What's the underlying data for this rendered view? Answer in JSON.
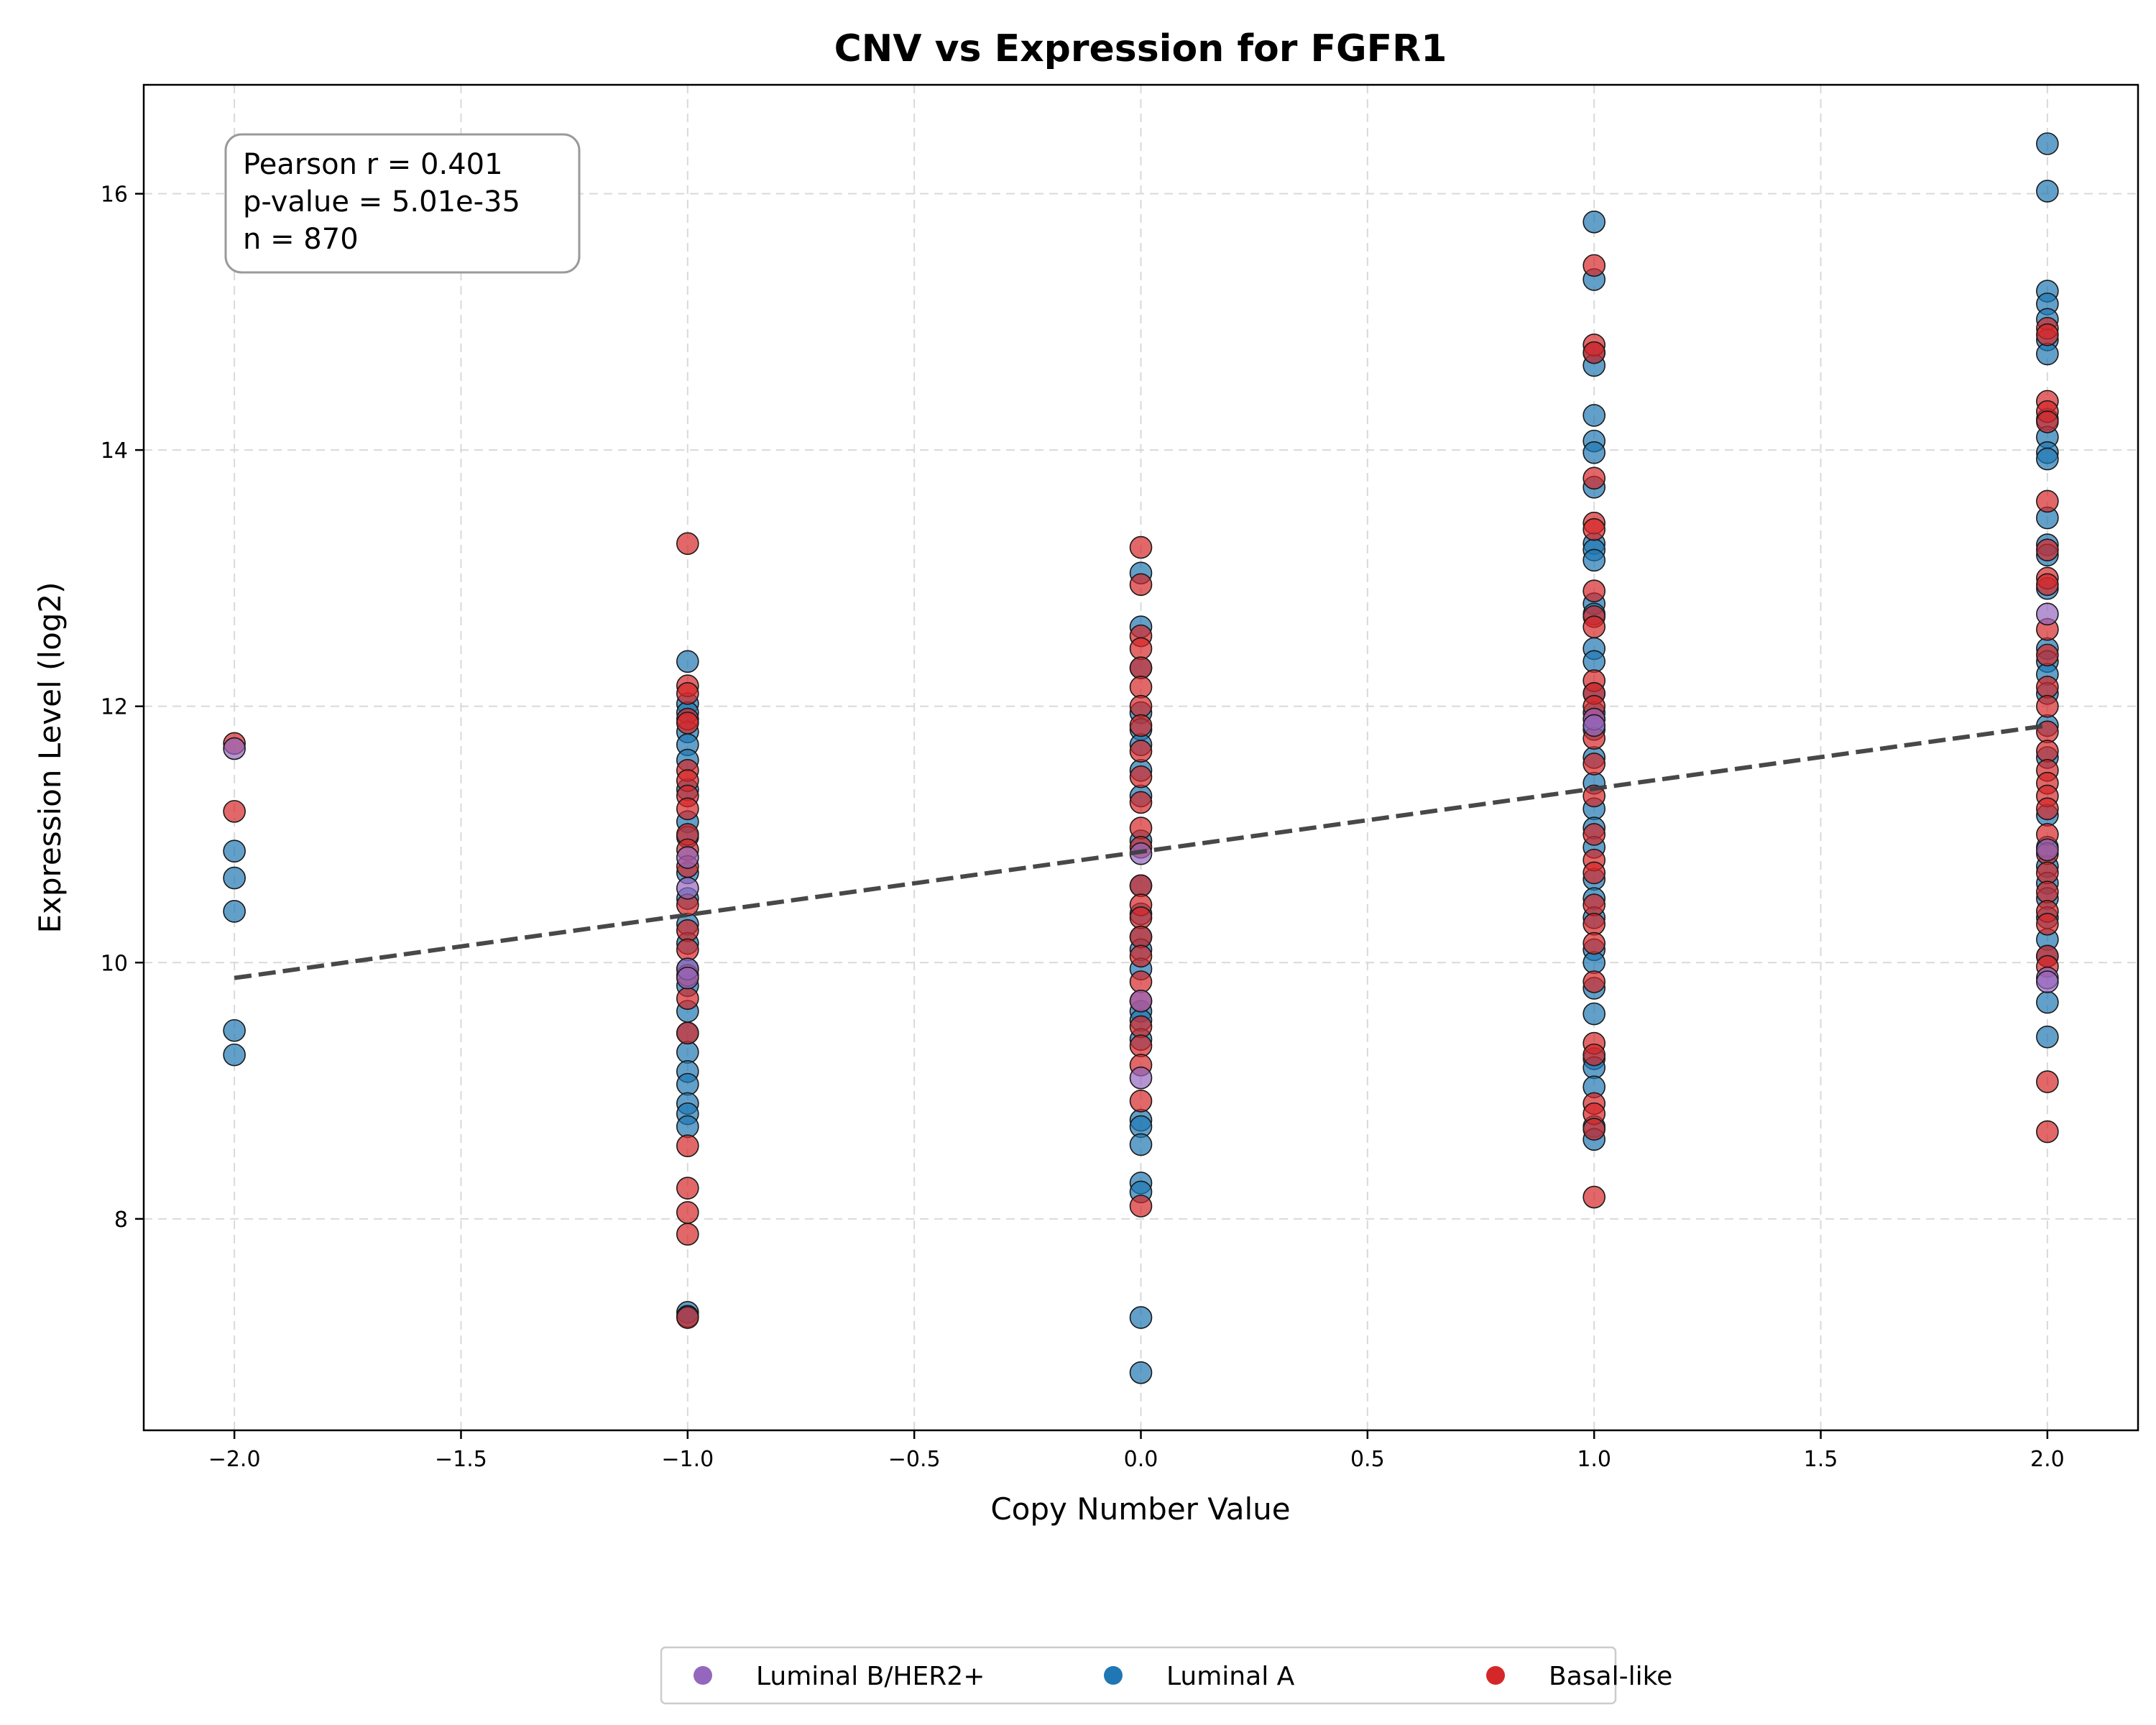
{
  "chart_data": {
    "type": "scatter",
    "title": "CNV vs Expression for FGFR1",
    "xlabel": "Copy Number Value",
    "ylabel": "Expression Level (log2)",
    "xlim": [
      -2.2,
      2.2
    ],
    "ylim": [
      6.35,
      16.85
    ],
    "x_ticks": [
      -2.0,
      -1.5,
      -1.0,
      -0.5,
      0.0,
      0.5,
      1.0,
      1.5,
      2.0
    ],
    "x_tick_labels": [
      "−2.0",
      "−1.5",
      "−1.0",
      "−0.5",
      "0.0",
      "0.5",
      "1.0",
      "1.5",
      "2.0"
    ],
    "y_ticks": [
      8,
      10,
      12,
      14,
      16
    ],
    "y_tick_labels": [
      "8",
      "10",
      "12",
      "14",
      "16"
    ],
    "grid": true,
    "annotation_lines": [
      "Pearson r = 0.401",
      "p-value = 5.01e-35",
      "n = 870"
    ],
    "regression_line": {
      "x": [
        -2.0,
        2.0
      ],
      "y": [
        9.88,
        11.85
      ],
      "style": "dashed",
      "color": "#3f3f3f"
    },
    "legend_position": "bottom-center",
    "series": [
      {
        "name": "Luminal A",
        "color": "#1f77b4",
        "points": [
          [
            -2,
            10.87
          ],
          [
            -2,
            10.66
          ],
          [
            -2,
            10.4
          ],
          [
            -2,
            9.47
          ],
          [
            -2,
            9.28
          ],
          [
            -1,
            12.35
          ],
          [
            -1,
            12.02
          ],
          [
            -1,
            11.95
          ],
          [
            -1,
            11.8
          ],
          [
            -1,
            11.7
          ],
          [
            -1,
            11.58
          ],
          [
            -1,
            11.35
          ],
          [
            -1,
            11.1
          ],
          [
            -1,
            10.98
          ],
          [
            -1,
            10.7
          ],
          [
            -1,
            10.5
          ],
          [
            -1,
            10.3
          ],
          [
            -1,
            10.15
          ],
          [
            -1,
            9.95
          ],
          [
            -1,
            9.82
          ],
          [
            -1,
            9.62
          ],
          [
            -1,
            9.45
          ],
          [
            -1,
            9.3
          ],
          [
            -1,
            9.15
          ],
          [
            -1,
            9.05
          ],
          [
            -1,
            8.9
          ],
          [
            -1,
            8.82
          ],
          [
            -1,
            8.72
          ],
          [
            -1,
            7.27
          ],
          [
            -1,
            7.24
          ],
          [
            0,
            13.04
          ],
          [
            0,
            12.62
          ],
          [
            0,
            12.3
          ],
          [
            0,
            11.95
          ],
          [
            0,
            11.82
          ],
          [
            0,
            11.7
          ],
          [
            0,
            11.5
          ],
          [
            0,
            11.3
          ],
          [
            0,
            10.95
          ],
          [
            0,
            10.6
          ],
          [
            0,
            10.38
          ],
          [
            0,
            10.2
          ],
          [
            0,
            10.1
          ],
          [
            0,
            9.95
          ],
          [
            0,
            9.62
          ],
          [
            0,
            9.55
          ],
          [
            0,
            9.4
          ],
          [
            0,
            8.77
          ],
          [
            0,
            8.72
          ],
          [
            0,
            8.58
          ],
          [
            0,
            8.28
          ],
          [
            0,
            8.21
          ],
          [
            0,
            7.23
          ],
          [
            0,
            6.8
          ],
          [
            1,
            15.78
          ],
          [
            1,
            15.33
          ],
          [
            1,
            14.76
          ],
          [
            1,
            14.66
          ],
          [
            1,
            14.27
          ],
          [
            1,
            14.07
          ],
          [
            1,
            13.98
          ],
          [
            1,
            13.71
          ],
          [
            1,
            13.27
          ],
          [
            1,
            13.22
          ],
          [
            1,
            13.14
          ],
          [
            1,
            12.8
          ],
          [
            1,
            12.72
          ],
          [
            1,
            12.45
          ],
          [
            1,
            12.35
          ],
          [
            1,
            12.1
          ],
          [
            1,
            11.95
          ],
          [
            1,
            11.82
          ],
          [
            1,
            11.6
          ],
          [
            1,
            11.4
          ],
          [
            1,
            11.2
          ],
          [
            1,
            11.05
          ],
          [
            1,
            10.9
          ],
          [
            1,
            10.65
          ],
          [
            1,
            10.5
          ],
          [
            1,
            10.35
          ],
          [
            1,
            10.1
          ],
          [
            1,
            10.0
          ],
          [
            1,
            9.8
          ],
          [
            1,
            9.6
          ],
          [
            1,
            9.25
          ],
          [
            1,
            9.18
          ],
          [
            1,
            9.03
          ],
          [
            1,
            8.72
          ],
          [
            1,
            8.62
          ],
          [
            2,
            16.39
          ],
          [
            2,
            16.02
          ],
          [
            2,
            15.24
          ],
          [
            2,
            15.14
          ],
          [
            2,
            15.02
          ],
          [
            2,
            14.86
          ],
          [
            2,
            14.75
          ],
          [
            2,
            14.24
          ],
          [
            2,
            14.1
          ],
          [
            2,
            13.98
          ],
          [
            2,
            13.93
          ],
          [
            2,
            13.47
          ],
          [
            2,
            13.26
          ],
          [
            2,
            13.18
          ],
          [
            2,
            12.92
          ],
          [
            2,
            12.45
          ],
          [
            2,
            12.35
          ],
          [
            2,
            12.25
          ],
          [
            2,
            12.1
          ],
          [
            2,
            11.85
          ],
          [
            2,
            11.6
          ],
          [
            2,
            11.15
          ],
          [
            2,
            10.9
          ],
          [
            2,
            10.75
          ],
          [
            2,
            10.62
          ],
          [
            2,
            10.5
          ],
          [
            2,
            10.35
          ],
          [
            2,
            10.18
          ],
          [
            2,
            10.05
          ],
          [
            2,
            9.69
          ],
          [
            2,
            9.42
          ]
        ]
      },
      {
        "name": "Basal-like",
        "color": "#d62728",
        "points": [
          [
            -2,
            11.71
          ],
          [
            -2,
            11.18
          ],
          [
            -1,
            13.27
          ],
          [
            -1,
            12.16
          ],
          [
            -1,
            12.1
          ],
          [
            -1,
            11.9
          ],
          [
            -1,
            11.87
          ],
          [
            -1,
            11.5
          ],
          [
            -1,
            11.42
          ],
          [
            -1,
            11.3
          ],
          [
            -1,
            11.2
          ],
          [
            -1,
            11.0
          ],
          [
            -1,
            10.88
          ],
          [
            -1,
            10.75
          ],
          [
            -1,
            10.45
          ],
          [
            -1,
            10.25
          ],
          [
            -1,
            10.1
          ],
          [
            -1,
            9.9
          ],
          [
            -1,
            9.72
          ],
          [
            -1,
            9.45
          ],
          [
            -1,
            8.57
          ],
          [
            -1,
            8.24
          ],
          [
            -1,
            8.05
          ],
          [
            -1,
            7.88
          ],
          [
            -1,
            7.23
          ],
          [
            0,
            13.24
          ],
          [
            0,
            12.95
          ],
          [
            0,
            12.55
          ],
          [
            0,
            12.45
          ],
          [
            0,
            12.3
          ],
          [
            0,
            12.15
          ],
          [
            0,
            12.0
          ],
          [
            0,
            11.85
          ],
          [
            0,
            11.65
          ],
          [
            0,
            11.45
          ],
          [
            0,
            11.25
          ],
          [
            0,
            11.05
          ],
          [
            0,
            10.9
          ],
          [
            0,
            10.6
          ],
          [
            0,
            10.45
          ],
          [
            0,
            10.35
          ],
          [
            0,
            10.2
          ],
          [
            0,
            10.05
          ],
          [
            0,
            9.85
          ],
          [
            0,
            9.7
          ],
          [
            0,
            9.5
          ],
          [
            0,
            9.35
          ],
          [
            0,
            9.2
          ],
          [
            0,
            8.92
          ],
          [
            0,
            8.1
          ],
          [
            1,
            15.44
          ],
          [
            1,
            14.82
          ],
          [
            1,
            14.76
          ],
          [
            1,
            13.78
          ],
          [
            1,
            13.43
          ],
          [
            1,
            13.38
          ],
          [
            1,
            12.9
          ],
          [
            1,
            12.7
          ],
          [
            1,
            12.62
          ],
          [
            1,
            12.2
          ],
          [
            1,
            12.1
          ],
          [
            1,
            12.0
          ],
          [
            1,
            11.9
          ],
          [
            1,
            11.75
          ],
          [
            1,
            11.55
          ],
          [
            1,
            11.3
          ],
          [
            1,
            11.0
          ],
          [
            1,
            10.8
          ],
          [
            1,
            10.7
          ],
          [
            1,
            10.45
          ],
          [
            1,
            10.3
          ],
          [
            1,
            10.15
          ],
          [
            1,
            9.85
          ],
          [
            1,
            9.37
          ],
          [
            1,
            9.28
          ],
          [
            1,
            8.9
          ],
          [
            1,
            8.82
          ],
          [
            1,
            8.7
          ],
          [
            1,
            8.17
          ],
          [
            2,
            14.95
          ],
          [
            2,
            14.9
          ],
          [
            2,
            14.38
          ],
          [
            2,
            14.3
          ],
          [
            2,
            14.22
          ],
          [
            2,
            13.6
          ],
          [
            2,
            13.22
          ],
          [
            2,
            13.0
          ],
          [
            2,
            12.95
          ],
          [
            2,
            12.6
          ],
          [
            2,
            12.4
          ],
          [
            2,
            12.15
          ],
          [
            2,
            12.0
          ],
          [
            2,
            11.8
          ],
          [
            2,
            11.65
          ],
          [
            2,
            11.5
          ],
          [
            2,
            11.4
          ],
          [
            2,
            11.3
          ],
          [
            2,
            11.2
          ],
          [
            2,
            11.0
          ],
          [
            2,
            10.85
          ],
          [
            2,
            10.7
          ],
          [
            2,
            10.55
          ],
          [
            2,
            10.4
          ],
          [
            2,
            10.3
          ],
          [
            2,
            10.05
          ],
          [
            2,
            9.97
          ],
          [
            2,
            9.07
          ],
          [
            2,
            8.68
          ]
        ]
      },
      {
        "name": "Luminal B/HER2+",
        "color": "#9467bd",
        "points": [
          [
            -2,
            11.67
          ],
          [
            -1,
            10.82
          ],
          [
            -1,
            10.58
          ],
          [
            -1,
            9.95
          ],
          [
            -1,
            9.88
          ],
          [
            0,
            10.85
          ],
          [
            0,
            9.7
          ],
          [
            0,
            9.1
          ],
          [
            1,
            11.9
          ],
          [
            1,
            11.85
          ],
          [
            2,
            12.72
          ],
          [
            2,
            10.88
          ],
          [
            2,
            9.88
          ],
          [
            2,
            9.85
          ]
        ]
      }
    ]
  }
}
